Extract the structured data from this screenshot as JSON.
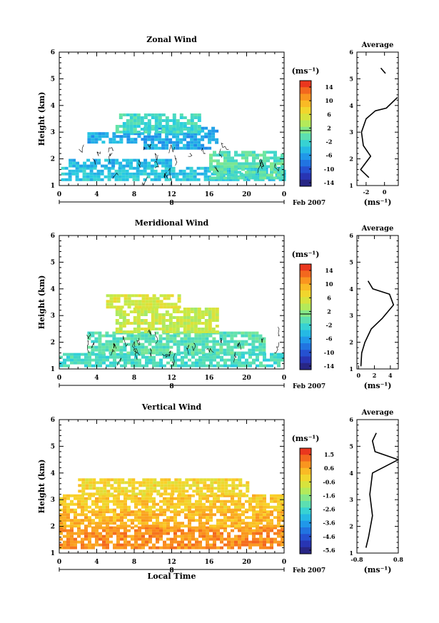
{
  "figure": {
    "xlabel": "Local Time",
    "height_label": "Height (km)",
    "unit_label": "(ms⁻¹)",
    "profile_title": "Average",
    "day_label": "8",
    "month_label": "Feb 2007",
    "x_ticks": [
      "0",
      "4",
      "8",
      "12",
      "16",
      "20",
      "0"
    ],
    "y_ticks": [
      "1",
      "2",
      "3",
      "4",
      "5",
      "6"
    ]
  },
  "chart_data": [
    {
      "type": "heatmap",
      "title": "Zonal Wind",
      "xlabel": "",
      "ylabel": "Height (km)",
      "x_range": [
        0,
        24
      ],
      "y_range": [
        1,
        6
      ],
      "colorbar_ticks": [
        "14",
        "10",
        "6",
        "2",
        "-2",
        "-6",
        "-10",
        "-14"
      ],
      "colorbar_range": [
        -16,
        16
      ],
      "cells": [
        {
          "t0": 0.2,
          "t1": 24,
          "h0": 1.2,
          "h1": 1.7,
          "v": -4
        },
        {
          "t0": 1,
          "t1": 12,
          "h0": 1.7,
          "h1": 2.0,
          "v": -5
        },
        {
          "t0": 9,
          "t1": 17,
          "h0": 2.4,
          "h1": 3.2,
          "v": -6
        },
        {
          "t0": 3,
          "t1": 9,
          "h0": 2.6,
          "h1": 3.0,
          "v": -6
        },
        {
          "t0": 6,
          "t1": 15,
          "h0": 3.0,
          "h1": 3.7,
          "v": -2
        },
        {
          "t0": 16,
          "t1": 24,
          "h0": 1.3,
          "h1": 2.3,
          "v": -1
        }
      ],
      "profile": {
        "title": "Average",
        "xlabel": "(ms⁻¹)",
        "x_range": [
          -3,
          1.5
        ],
        "x_ticks": [
          "-2",
          "0"
        ],
        "y_range": [
          1,
          6
        ],
        "points": [
          [
            -1.7,
            1.3
          ],
          [
            -2.6,
            1.6
          ],
          [
            -1.5,
            2.1
          ],
          [
            -2.3,
            2.5
          ],
          [
            -2.5,
            3.0
          ],
          [
            -2.0,
            3.5
          ],
          [
            -1.0,
            3.8
          ],
          [
            0.2,
            3.9
          ],
          [
            1.4,
            4.3
          ]
        ],
        "extra_segment": [
          [
            -0.4,
            5.4
          ],
          [
            0.1,
            5.2
          ]
        ]
      }
    },
    {
      "type": "heatmap",
      "title": "Meridional Wind",
      "xlabel": "",
      "ylabel": "Height (km)",
      "x_range": [
        0,
        24
      ],
      "y_range": [
        1,
        6
      ],
      "colorbar_ticks": [
        "14",
        "10",
        "6",
        "2",
        "-2",
        "-6",
        "-10",
        "-14"
      ],
      "colorbar_range": [
        -16,
        16
      ],
      "cells": [
        {
          "t0": 0,
          "t1": 24,
          "h0": 1.1,
          "h1": 1.6,
          "v": -2
        },
        {
          "t0": 3,
          "t1": 22,
          "h0": 1.6,
          "h1": 2.4,
          "v": -1
        },
        {
          "t0": 6,
          "t1": 17,
          "h0": 2.4,
          "h1": 3.3,
          "v": 4
        },
        {
          "t0": 5,
          "t1": 13,
          "h0": 3.3,
          "h1": 3.8,
          "v": 5
        }
      ],
      "profile": {
        "title": "Average",
        "xlabel": "(ms⁻¹)",
        "x_range": [
          -0.2,
          5
        ],
        "x_ticks": [
          "0",
          "2",
          "4"
        ],
        "y_range": [
          1,
          6
        ],
        "points": [
          [
            0.3,
            1.1
          ],
          [
            0.4,
            1.6
          ],
          [
            0.8,
            2.0
          ],
          [
            1.6,
            2.5
          ],
          [
            3.0,
            2.9
          ],
          [
            4.4,
            3.4
          ],
          [
            3.9,
            3.8
          ],
          [
            1.8,
            4.0
          ],
          [
            1.2,
            4.3
          ]
        ]
      }
    },
    {
      "type": "heatmap",
      "title": "Vertical Wind",
      "xlabel": "Local Time",
      "ylabel": "Height (km)",
      "x_range": [
        0,
        24
      ],
      "y_range": [
        1,
        6
      ],
      "colorbar_ticks": [
        "1.5",
        "0.6",
        "-0.6",
        "-1.6",
        "-2.6",
        "-3.6",
        "-4.6",
        "-5.6"
      ],
      "colorbar_range": [
        -6.1,
        2.0
      ],
      "cells": [
        {
          "t0": 0,
          "t1": 24,
          "h0": 1.2,
          "h1": 2.0,
          "v": 0.8
        },
        {
          "t0": 0,
          "t1": 24,
          "h0": 2.0,
          "h1": 2.6,
          "v": 0.3
        },
        {
          "t0": 0,
          "t1": 24,
          "h0": 2.6,
          "h1": 3.2,
          "v": 0.0
        },
        {
          "t0": 2,
          "t1": 20,
          "h0": 3.2,
          "h1": 3.8,
          "v": -0.3
        }
      ],
      "profile": {
        "title": "Average",
        "xlabel": "(ms⁻¹)",
        "x_range": [
          -0.8,
          0.8
        ],
        "x_ticks": [
          "-0.8",
          "0.8"
        ],
        "y_range": [
          1,
          6
        ],
        "points": [
          [
            -0.45,
            1.2
          ],
          [
            -0.35,
            1.6
          ],
          [
            -0.2,
            2.4
          ],
          [
            -0.3,
            3.2
          ],
          [
            -0.2,
            4.0
          ],
          [
            0.8,
            4.5
          ],
          [
            -0.1,
            4.8
          ],
          [
            -0.2,
            5.2
          ],
          [
            -0.05,
            5.5
          ]
        ]
      }
    }
  ]
}
